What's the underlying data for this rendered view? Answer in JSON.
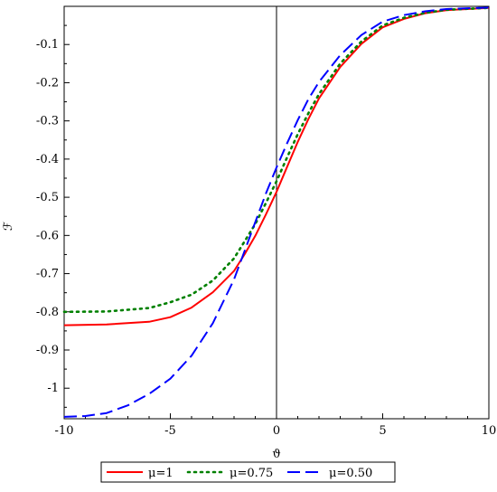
{
  "chart_data": {
    "type": "line",
    "title": "",
    "xlabel": "ϑ",
    "ylabel": "ℱ",
    "xlim": [
      -10,
      10
    ],
    "ylim": [
      -1.08,
      0.0
    ],
    "grid": false,
    "legend_position": "bottom",
    "x_ticks": [
      -10,
      -5,
      0,
      5,
      10
    ],
    "x_tick_labels": [
      "-10",
      "-5",
      "0",
      "5",
      "10"
    ],
    "y_ticks": [
      -0.1,
      -0.2,
      -0.3,
      -0.4,
      -0.5,
      -0.6,
      -0.7,
      -0.8,
      -0.9,
      -1
    ],
    "y_tick_labels": [
      "-0.1",
      "-0.2",
      "-0.3",
      "-0.4",
      "-0.5",
      "-0.6",
      "-0.7",
      "-0.8",
      "-0.9",
      "-1"
    ],
    "series": [
      {
        "name": "μ=1",
        "color": "#ff0000",
        "dash": "solid",
        "x": [
          -10,
          -8,
          -6,
          -5,
          -4,
          -3,
          -2,
          -1.5,
          -1,
          -0.5,
          0,
          0.5,
          1,
          1.5,
          2,
          3,
          4,
          5,
          6,
          7,
          8,
          10
        ],
        "y": [
          -0.835,
          -0.833,
          -0.826,
          -0.814,
          -0.789,
          -0.749,
          -0.693,
          -0.649,
          -0.601,
          -0.545,
          -0.486,
          -0.42,
          -0.355,
          -0.295,
          -0.241,
          -0.159,
          -0.098,
          -0.055,
          -0.033,
          -0.018,
          -0.01,
          -0.004
        ]
      },
      {
        "name": "μ=0.75",
        "color": "#008000",
        "dash": "dotted",
        "x": [
          -10,
          -8,
          -6,
          -5,
          -4,
          -3,
          -2,
          -1.5,
          -1,
          -0.5,
          0,
          0.5,
          1,
          1.5,
          2,
          3,
          4,
          5,
          6,
          7,
          8,
          10
        ],
        "y": [
          -0.8,
          -0.799,
          -0.79,
          -0.775,
          -0.755,
          -0.718,
          -0.66,
          -0.615,
          -0.57,
          -0.515,
          -0.458,
          -0.395,
          -0.335,
          -0.28,
          -0.23,
          -0.15,
          -0.092,
          -0.05,
          -0.03,
          -0.017,
          -0.009,
          -0.004
        ]
      },
      {
        "name": "μ=0.50",
        "color": "#0000ff",
        "dash": "dashed",
        "x": [
          -10,
          -9,
          -8,
          -7,
          -6,
          -5,
          -4,
          -3,
          -2,
          -1.5,
          -1,
          -0.5,
          0,
          0.5,
          1,
          1.5,
          2,
          3,
          4,
          5,
          6,
          7,
          8,
          10
        ],
        "y": [
          -1.075,
          -1.073,
          -1.065,
          -1.045,
          -1.015,
          -0.975,
          -0.915,
          -0.83,
          -0.715,
          -0.64,
          -0.565,
          -0.49,
          -0.422,
          -0.358,
          -0.298,
          -0.243,
          -0.198,
          -0.128,
          -0.075,
          -0.04,
          -0.023,
          -0.013,
          -0.007,
          -0.003
        ]
      }
    ]
  }
}
